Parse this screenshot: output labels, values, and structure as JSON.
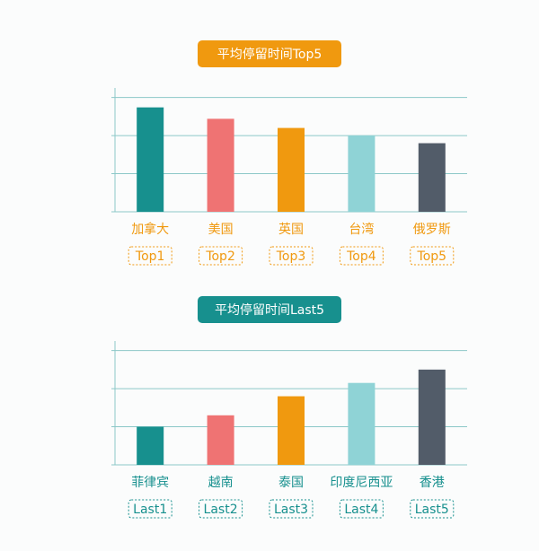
{
  "chart_data": [
    {
      "type": "bar",
      "title": "平均停留时间Top5",
      "theme_color": "#f0990f",
      "categories": [
        "加拿大",
        "美国",
        "英国",
        "台湾",
        "俄罗斯"
      ],
      "values": [
        2.74,
        2.44,
        2.2,
        2.0,
        1.8
      ],
      "colors": [
        "#17908e",
        "#ef7373",
        "#f0990f",
        "#8fd3d6",
        "#525c69"
      ],
      "rank_labels": [
        "Top1",
        "Top2",
        "Top3",
        "Top4",
        "Top5"
      ],
      "ylim": [
        0,
        3.25
      ],
      "yticks": [
        0,
        1,
        2,
        3
      ],
      "grid": true
    },
    {
      "type": "bar",
      "title": "平均停留时间Last5",
      "theme_color": "#17908e",
      "categories": [
        "菲律宾",
        "越南",
        "泰国",
        "印度尼西亚",
        "香港"
      ],
      "values": [
        1.0,
        1.3,
        1.8,
        2.15,
        2.5
      ],
      "colors": [
        "#17908e",
        "#ef7373",
        "#f0990f",
        "#8fd3d6",
        "#525c69"
      ],
      "rank_labels": [
        "Last1",
        "Last2",
        "Last3",
        "Last4",
        "Last5"
      ],
      "ylim": [
        0,
        3.25
      ],
      "yticks": [
        0,
        1,
        2,
        3
      ],
      "grid": true
    }
  ]
}
